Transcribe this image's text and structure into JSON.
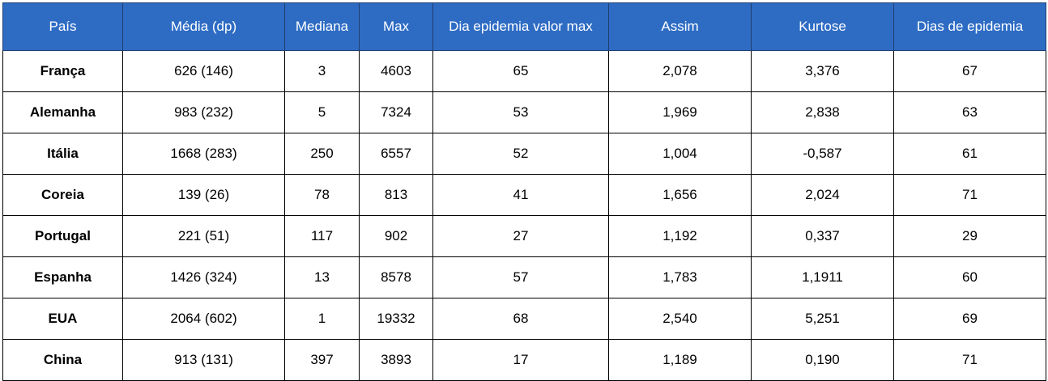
{
  "table": {
    "headers": [
      "País",
      "Média (dp)",
      "Mediana",
      "Max",
      "Dia epidemia valor max",
      "Assim",
      "Kurtose",
      "Dias de epidemia"
    ],
    "rows": [
      [
        "França",
        "626 (146)",
        "3",
        "4603",
        "65",
        "2,078",
        "3,376",
        "67"
      ],
      [
        "Alemanha",
        "983 (232)",
        "5",
        "7324",
        "53",
        "1,969",
        "2,838",
        "63"
      ],
      [
        "Itália",
        "1668 (283)",
        "250",
        "6557",
        "52",
        "1,004",
        "-0,587",
        "61"
      ],
      [
        "Coreia",
        "139 (26)",
        "78",
        "813",
        "41",
        "1,656",
        "2,024",
        "71"
      ],
      [
        "Portugal",
        "221 (51)",
        "117",
        "902",
        "27",
        "1,192",
        "0,337",
        "29"
      ],
      [
        "Espanha",
        "1426 (324)",
        "13",
        "8578",
        "57",
        "1,783",
        "1,1911",
        "60"
      ],
      [
        "EUA",
        "2064 (602)",
        "1",
        "19332",
        "68",
        "2,540",
        "5,251",
        "69"
      ],
      [
        "China",
        "913 (131)",
        "397",
        "3893",
        "17",
        "1,189",
        "0,190",
        "71"
      ]
    ]
  },
  "colors": {
    "header_background": "#2e6cc4",
    "header_text": "#ffffff",
    "border": "#000000"
  }
}
